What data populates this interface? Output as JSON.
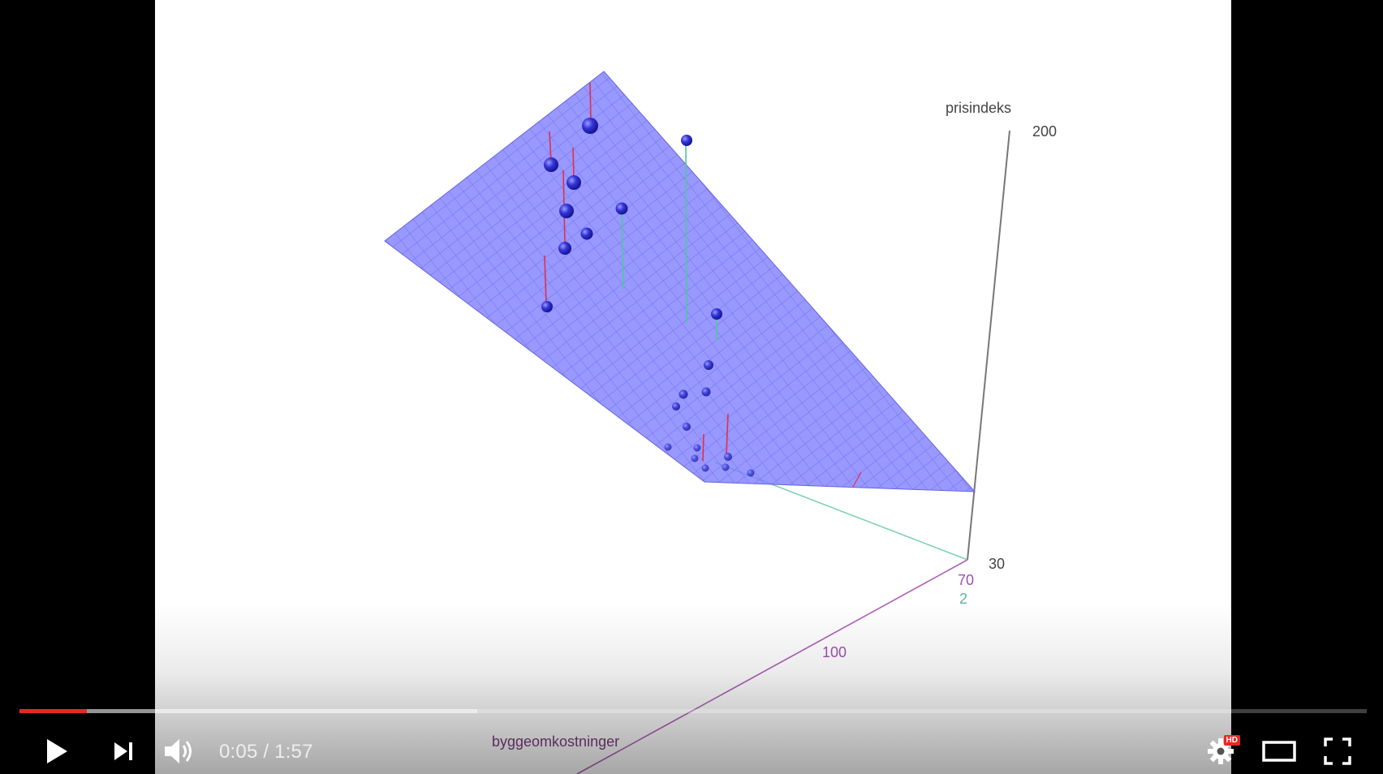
{
  "player": {
    "time_current": "0:05",
    "time_separator": " / ",
    "time_total": "1:57",
    "progress_played_fraction": 0.05,
    "progress_buffered_fraction": 0.34,
    "hd_badge": "HD",
    "accent_color": "#e52a22"
  },
  "plot": {
    "z_axis_label": "prisindeks",
    "z_tick_max": "200",
    "z_tick_min": "30",
    "x_axis_label": "byggeomkostninger",
    "x_tick_min": "70",
    "x_tick_mid": "100",
    "y_tick_min": "2",
    "plane_color": "#7b7bff",
    "point_color": "#2a2ad0",
    "residual_positive_color": "#e0304a",
    "residual_negative_color": "#4fc79a"
  },
  "icons": {
    "play": "play-icon",
    "next": "next-icon",
    "volume": "volume-icon",
    "settings": "gear-icon",
    "theater": "theater-mode-icon",
    "fullscreen": "fullscreen-icon"
  }
}
